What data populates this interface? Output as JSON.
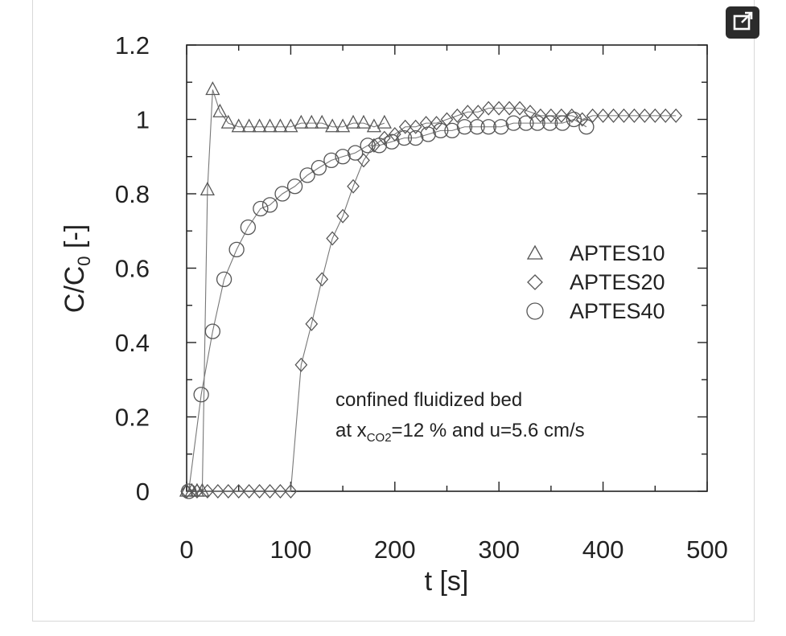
{
  "chart_data": {
    "type": "scatter",
    "xlabel": "t [s]",
    "ylabel": "C/C0 [-]",
    "ylabel_parts": {
      "main": "C/C",
      "sub": "0",
      "tail": " [-]"
    },
    "xlim": [
      0,
      500
    ],
    "ylim": [
      0,
      1.2
    ],
    "xticks": [
      "0",
      "100",
      "200",
      "300",
      "400",
      "500"
    ],
    "yticks": [
      "0",
      "0.2",
      "0.4",
      "0.6",
      "0.8",
      "1",
      "1.2"
    ],
    "grid": false,
    "legend_position": "center-right",
    "annotation": {
      "line1": "confined fluidized bed",
      "line2_pre": "at x",
      "line2_sub": "CO2",
      "line2_post": "=12 % and u=5.6 cm/s"
    },
    "series": [
      {
        "name": "APTES10",
        "marker": "triangle",
        "x": [
          0,
          5,
          10,
          15,
          20,
          25,
          32,
          40,
          50,
          60,
          70,
          80,
          90,
          100,
          110,
          120,
          130,
          140,
          150,
          160,
          170,
          180,
          190
        ],
        "y": [
          0,
          0,
          0,
          0,
          0.81,
          1.08,
          1.02,
          0.99,
          0.98,
          0.98,
          0.98,
          0.98,
          0.98,
          0.98,
          0.99,
          0.99,
          0.99,
          0.98,
          0.98,
          0.99,
          0.99,
          0.98,
          0.99
        ]
      },
      {
        "name": "APTES20",
        "marker": "diamond",
        "x": [
          0,
          10,
          20,
          30,
          40,
          50,
          60,
          70,
          80,
          90,
          100,
          110,
          120,
          130,
          140,
          150,
          160,
          170,
          180,
          190,
          200,
          210,
          220,
          230,
          240,
          250,
          260,
          270,
          280,
          290,
          300,
          310,
          320,
          330,
          340,
          350,
          360,
          370,
          380,
          390,
          400,
          410,
          420,
          430,
          440,
          450,
          460,
          470
        ],
        "y": [
          0,
          0,
          0,
          0,
          0,
          0,
          0,
          0,
          0,
          0,
          0,
          0.34,
          0.45,
          0.57,
          0.68,
          0.74,
          0.82,
          0.89,
          0.93,
          0.95,
          0.96,
          0.98,
          0.98,
          0.99,
          0.99,
          1.0,
          1.01,
          1.02,
          1.02,
          1.03,
          1.03,
          1.03,
          1.03,
          1.02,
          1.01,
          1.01,
          1.01,
          1.01,
          1.0,
          1.01,
          1.01,
          1.01,
          1.01,
          1.01,
          1.01,
          1.01,
          1.01,
          1.01
        ]
      },
      {
        "name": "APTES40",
        "marker": "circle",
        "x": [
          2,
          14,
          25,
          36,
          48,
          59,
          71,
          80,
          92,
          104,
          116,
          127,
          139,
          150,
          162,
          174,
          185,
          197,
          209,
          220,
          232,
          244,
          255,
          267,
          279,
          290,
          302,
          314,
          326,
          337,
          349,
          361,
          372,
          384
        ],
        "y": [
          0,
          0.26,
          0.43,
          0.57,
          0.65,
          0.71,
          0.76,
          0.77,
          0.8,
          0.82,
          0.85,
          0.87,
          0.89,
          0.9,
          0.91,
          0.93,
          0.93,
          0.94,
          0.95,
          0.95,
          0.96,
          0.97,
          0.97,
          0.98,
          0.98,
          0.98,
          0.98,
          0.99,
          0.99,
          0.99,
          0.99,
          0.99,
          1.0,
          0.98
        ]
      }
    ]
  }
}
